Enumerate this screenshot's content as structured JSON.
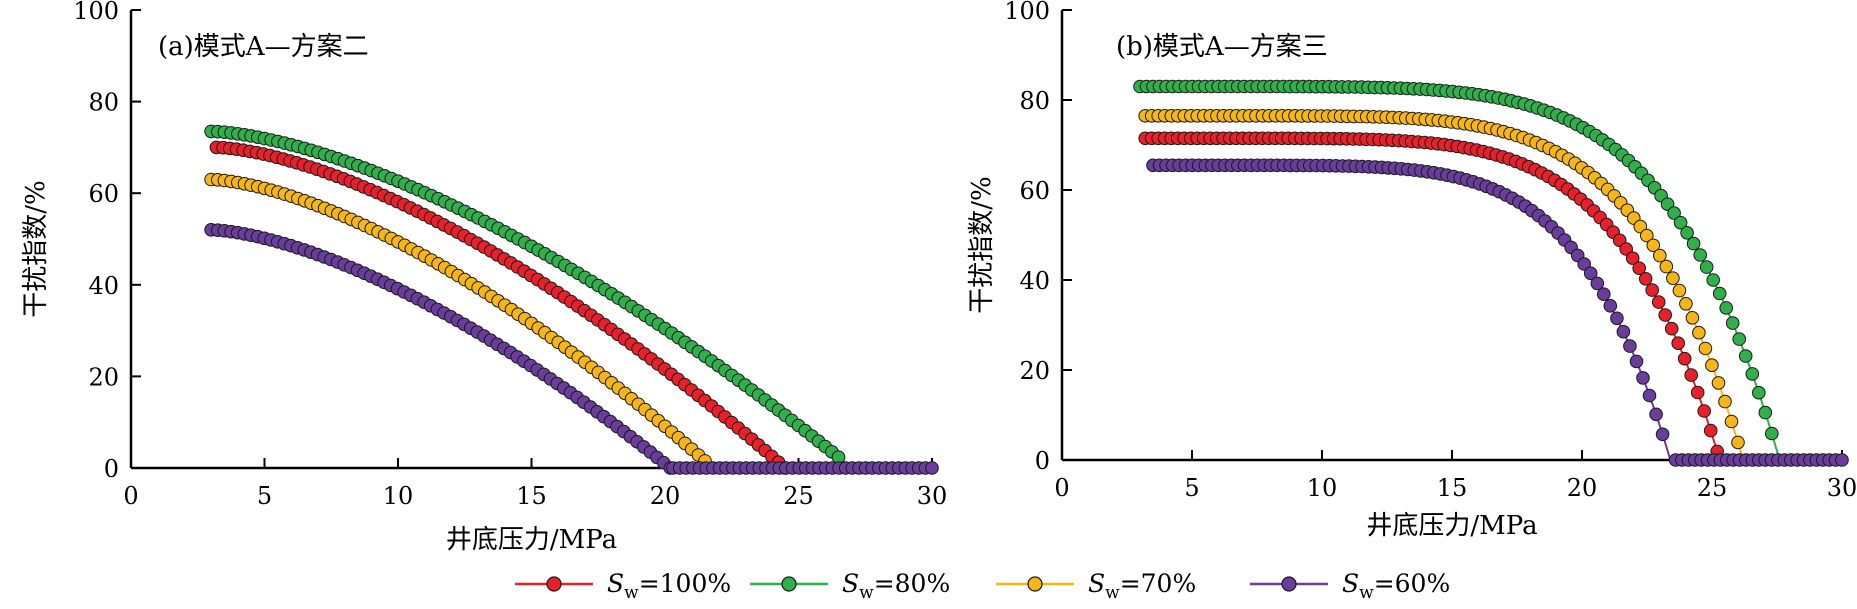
{
  "chart_data": [
    {
      "type": "scatter",
      "title": "(a)模式A—方案二",
      "xlabel": "井底压力/MPa",
      "ylabel": "干扰指数/%",
      "xlim": [
        0,
        30
      ],
      "ylim": [
        0,
        100
      ],
      "xticks": [
        0,
        5,
        10,
        15,
        20,
        25,
        30
      ],
      "yticks": [
        0,
        20,
        40,
        60,
        80,
        100
      ],
      "grid": false,
      "markers": "circles connected by line",
      "series": [
        {
          "key": "sw100",
          "x_start": 3.2,
          "x_end": 24.5,
          "y0": 70.0,
          "zero_x": 24.5,
          "shape": 1.55
        },
        {
          "key": "sw80",
          "x_start": 3.0,
          "x_end": 26.5,
          "y0": 73.5,
          "zero_x": 27.0,
          "shape": 1.55
        },
        {
          "key": "sw70",
          "x_start": 3.0,
          "x_end": 21.5,
          "y0": 63.0,
          "zero_x": 21.8,
          "shape": 1.55
        },
        {
          "key": "sw60",
          "x_start": 3.0,
          "x_end": 20.2,
          "y0": 52.0,
          "zero_x": 20.2,
          "shape": 1.55
        }
      ],
      "zero_tail": {
        "x_start": 20.3,
        "x_end": 30.0,
        "y": 0
      }
    },
    {
      "type": "scatter",
      "title": "(b)模式A—方案三",
      "xlabel": "井底压力/MPa",
      "ylabel": "干扰指数/%",
      "xlim": [
        0,
        30
      ],
      "ylim": [
        0,
        100
      ],
      "xticks": [
        0,
        5,
        10,
        15,
        20,
        25,
        30
      ],
      "yticks": [
        0,
        20,
        40,
        60,
        80,
        100
      ],
      "grid": false,
      "markers": "circles connected by line",
      "series": [
        {
          "key": "sw100",
          "x_start": 3.2,
          "x_end": 25.2,
          "y0": 71.5,
          "zero_x": 25.3,
          "shape": 6
        },
        {
          "key": "sw80",
          "x_start": 3.0,
          "x_end": 27.3,
          "y0": 83.0,
          "zero_x": 27.6,
          "shape": 6
        },
        {
          "key": "sw70",
          "x_start": 3.2,
          "x_end": 26.0,
          "y0": 76.5,
          "zero_x": 26.2,
          "shape": 6
        },
        {
          "key": "sw60",
          "x_start": 3.5,
          "x_end": 23.1,
          "y0": 65.5,
          "zero_x": 23.4,
          "shape": 6
        }
      ],
      "zero_tail": {
        "x_start": 23.6,
        "x_end": 30.0,
        "y": 0
      }
    }
  ],
  "legend": {
    "placement": "bottom",
    "entries": [
      {
        "key": "sw100",
        "symbol": "S",
        "subscript": "w",
        "value": "=100%",
        "color": "#e8202a"
      },
      {
        "key": "sw80",
        "symbol": "S",
        "subscript": "w",
        "value": "=80%",
        "color": "#2fb04a"
      },
      {
        "key": "sw70",
        "symbol": "S",
        "subscript": "w",
        "value": "=70%",
        "color": "#f7b516"
      },
      {
        "key": "sw60",
        "symbol": "S",
        "subscript": "w",
        "value": "=60%",
        "color": "#6a3c9c"
      }
    ]
  },
  "colors": {
    "sw100": "#e8202a",
    "sw80": "#2fb04a",
    "sw70": "#f7b516",
    "sw60": "#6a3c9c",
    "marker_edge": "#1a1a1a",
    "axis": "#000000"
  }
}
